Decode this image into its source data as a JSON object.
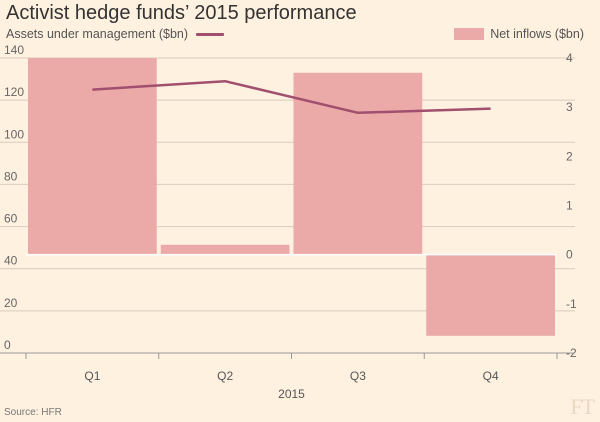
{
  "title": "Activist hedge funds’ 2015 performance",
  "source": "Source: HFR",
  "logo": "FT",
  "colors": {
    "background": "#fff1e0",
    "bars": "#eba9a8",
    "line": "#a0506e",
    "grid": "#d8cbbb",
    "zero_line": "#ffffff"
  },
  "chart_data": {
    "type": "bar",
    "categories": [
      "Q1",
      "Q2",
      "Q3",
      "Q4"
    ],
    "xlabel": "2015",
    "series": [
      {
        "name": "Net inflows ($bn)",
        "type": "bar",
        "axis": "right",
        "values": [
          4.0,
          0.2,
          3.7,
          -1.65
        ]
      },
      {
        "name": "Assets under management ($bn)",
        "type": "line",
        "axis": "left",
        "values": [
          125,
          129,
          114,
          116
        ]
      }
    ],
    "left_axis": {
      "min": 0,
      "max": 140,
      "ticks": [
        0,
        20,
        40,
        60,
        80,
        100,
        120,
        140
      ]
    },
    "right_axis": {
      "min": -2,
      "max": 4,
      "ticks": [
        -2,
        -1,
        0,
        1,
        2,
        3,
        4
      ]
    },
    "grid": true,
    "legend_placement": "top"
  }
}
